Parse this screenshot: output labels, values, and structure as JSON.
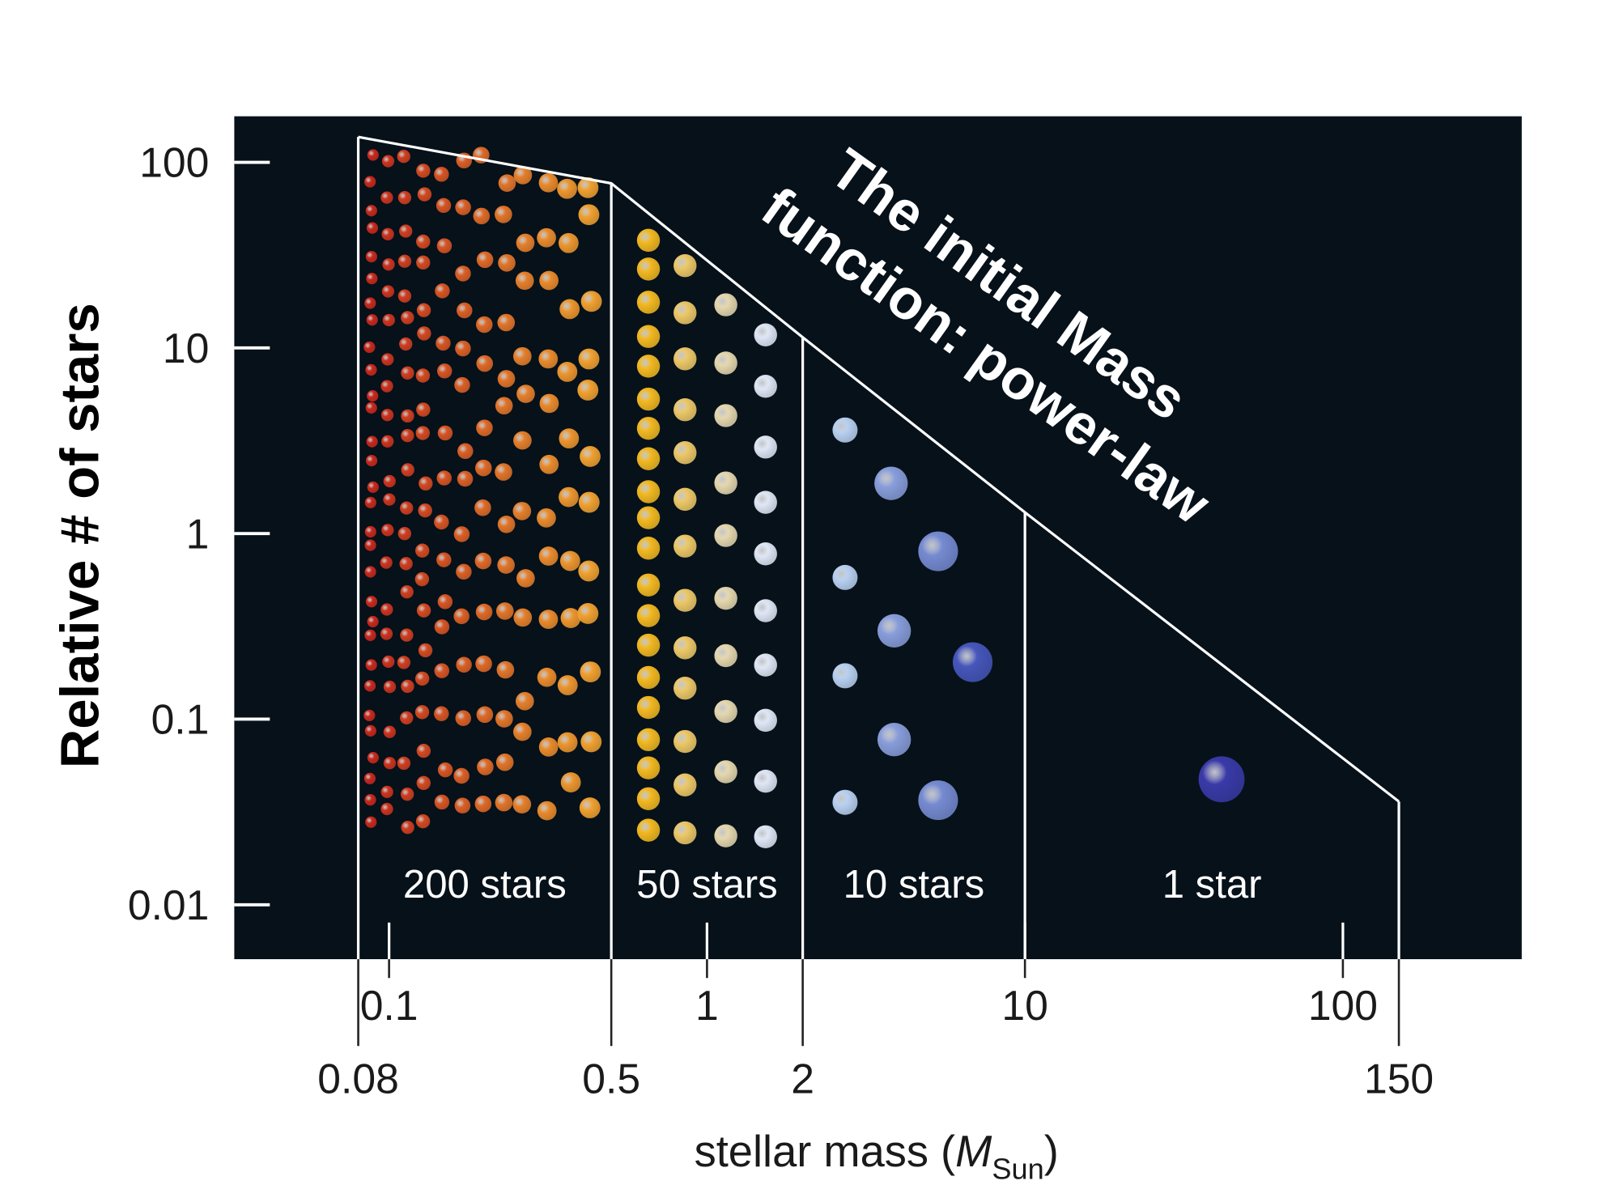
{
  "chart_data": {
    "type": "area",
    "title": "The initial Mass function: power-law",
    "title_lines": [
      "The initial Mass",
      "function: power-law"
    ],
    "xlabel": {
      "main": "stellar mass (",
      "italic": "M",
      "sub": "Sun",
      "close": ")"
    },
    "ylabel": "Relative # of stars",
    "x_scale": "log",
    "y_scale": "log",
    "xlim": [
      0.06,
      400
    ],
    "ylim": [
      0.005,
      250
    ],
    "grid": false,
    "legend": "none",
    "background_color": "#06111a",
    "y_ticks": [
      {
        "value": 100,
        "label": "100"
      },
      {
        "value": 10,
        "label": "10"
      },
      {
        "value": 1,
        "label": "1"
      },
      {
        "value": 0.1,
        "label": "0.1"
      },
      {
        "value": 0.01,
        "label": "0.01"
      }
    ],
    "x_ticks": [
      {
        "value": 0.1,
        "label": "0.1"
      },
      {
        "value": 1,
        "label": "1"
      },
      {
        "value": 10,
        "label": "10"
      },
      {
        "value": 100,
        "label": "100"
      }
    ],
    "x_boundaries": [
      {
        "value": 0.08,
        "label": "0.08"
      },
      {
        "value": 0.5,
        "label": "0.5"
      },
      {
        "value": 2,
        "label": "2"
      },
      {
        "value": 10,
        "label": ""
      },
      {
        "value": 150,
        "label": "150"
      }
    ],
    "curve": {
      "x": [
        0.08,
        0.5,
        2,
        10,
        150
      ],
      "y": [
        137,
        77,
        11.4,
        1.3,
        0.036
      ]
    },
    "bins": [
      {
        "range": [
          0.08,
          0.5
        ],
        "count": 200,
        "label": "200 stars",
        "colors": [
          "#c8281c",
          "#f0a030"
        ]
      },
      {
        "range": [
          0.5,
          2
        ],
        "count": 50,
        "label": "50 stars",
        "colors": [
          "#f2b820",
          "#dfe6f5"
        ]
      },
      {
        "range": [
          2,
          10
        ],
        "count": 10,
        "label": "10 stars",
        "colors": [
          "#b8d0f0",
          "#4050b8"
        ]
      },
      {
        "range": [
          10,
          150
        ],
        "count": 1,
        "label": "1 star",
        "colors": [
          "#3a3aa8"
        ]
      }
    ]
  }
}
